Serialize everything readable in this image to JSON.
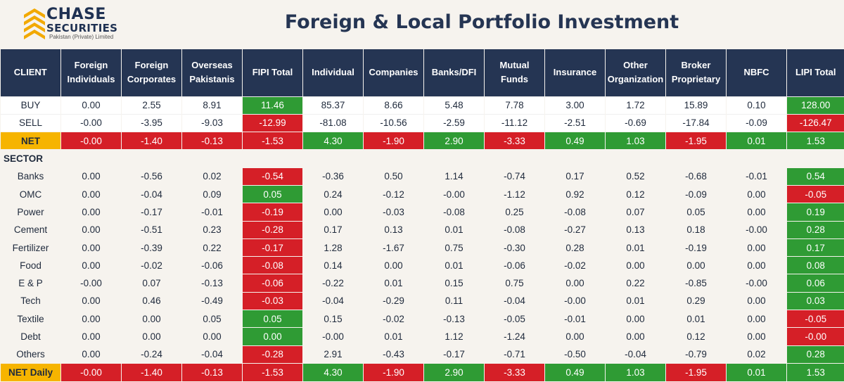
{
  "logo": {
    "line1": "CHASE",
    "line2": "SECURITIES",
    "line3": "Pakistan (Private) Limited"
  },
  "title": "Foreign & Local Portfolio Investment",
  "colors": {
    "header": "#253553",
    "green": "#2f9b34",
    "red": "#d51f27",
    "yellow": "#f6b400",
    "background": "#f6f3ee"
  },
  "columns": [
    "CLIENT",
    "Foreign Individuals",
    "Foreign Corporates",
    "Overseas Pakistanis",
    "FIPI Total",
    "Individual",
    "Companies",
    "Banks/DFI",
    "Mutual Funds",
    "Insurance",
    "Other Organization",
    "Broker Proprietary",
    "NBFC",
    "LIPI Total"
  ],
  "buy": {
    "label": "BUY",
    "values": [
      "0.00",
      "2.55",
      "8.91",
      "11.46",
      "85.37",
      "8.66",
      "5.48",
      "7.78",
      "3.00",
      "1.72",
      "15.89",
      "0.10",
      "128.00"
    ]
  },
  "sell": {
    "label": "SELL",
    "values": [
      "-0.00",
      "-3.95",
      "-9.03",
      "-12.99",
      "-81.08",
      "-10.56",
      "-2.59",
      "-11.12",
      "-2.51",
      "-0.69",
      "-17.84",
      "-0.09",
      "-126.47"
    ]
  },
  "net": {
    "label": "NET",
    "values": [
      "-0.00",
      "-1.40",
      "-0.13",
      "-1.53",
      "4.30",
      "-1.90",
      "2.90",
      "-3.33",
      "0.49",
      "1.03",
      "-1.95",
      "0.01",
      "1.53"
    ]
  },
  "sector_title": "SECTOR",
  "sectors": [
    {
      "name": "Banks",
      "values": [
        "0.00",
        "-0.56",
        "0.02",
        "-0.54",
        "-0.36",
        "0.50",
        "1.14",
        "-0.74",
        "0.17",
        "0.52",
        "-0.68",
        "-0.01",
        "0.54"
      ]
    },
    {
      "name": "OMC",
      "values": [
        "0.00",
        "-0.04",
        "0.09",
        "0.05",
        "0.24",
        "-0.12",
        "-0.00",
        "-1.12",
        "0.92",
        "0.12",
        "-0.09",
        "0.00",
        "-0.05"
      ]
    },
    {
      "name": "Power",
      "values": [
        "0.00",
        "-0.17",
        "-0.01",
        "-0.19",
        "0.00",
        "-0.03",
        "-0.08",
        "0.25",
        "-0.08",
        "0.07",
        "0.05",
        "0.00",
        "0.19"
      ]
    },
    {
      "name": "Cement",
      "values": [
        "0.00",
        "-0.51",
        "0.23",
        "-0.28",
        "0.17",
        "0.13",
        "0.01",
        "-0.08",
        "-0.27",
        "0.13",
        "0.18",
        "-0.00",
        "0.28"
      ]
    },
    {
      "name": "Fertilizer",
      "values": [
        "0.00",
        "-0.39",
        "0.22",
        "-0.17",
        "1.28",
        "-1.67",
        "0.75",
        "-0.30",
        "0.28",
        "0.01",
        "-0.19",
        "0.00",
        "0.17"
      ]
    },
    {
      "name": "Food",
      "values": [
        "0.00",
        "-0.02",
        "-0.06",
        "-0.08",
        "0.14",
        "0.00",
        "0.01",
        "-0.06",
        "-0.02",
        "0.00",
        "0.00",
        "0.00",
        "0.08"
      ]
    },
    {
      "name": "E & P",
      "values": [
        "-0.00",
        "0.07",
        "-0.13",
        "-0.06",
        "-0.22",
        "0.01",
        "0.15",
        "0.75",
        "0.00",
        "0.22",
        "-0.85",
        "-0.00",
        "0.06"
      ]
    },
    {
      "name": "Tech",
      "values": [
        "0.00",
        "0.46",
        "-0.49",
        "-0.03",
        "-0.04",
        "-0.29",
        "0.11",
        "-0.04",
        "-0.00",
        "0.01",
        "0.29",
        "0.00",
        "0.03"
      ]
    },
    {
      "name": "Textile",
      "values": [
        "0.00",
        "0.00",
        "0.05",
        "0.05",
        "0.15",
        "-0.02",
        "-0.13",
        "-0.05",
        "-0.01",
        "0.00",
        "0.01",
        "0.00",
        "-0.05"
      ]
    },
    {
      "name": "Debt",
      "values": [
        "0.00",
        "0.00",
        "0.00",
        "0.00",
        "-0.00",
        "0.01",
        "1.12",
        "-1.24",
        "0.00",
        "0.00",
        "0.12",
        "0.00",
        "-0.00"
      ]
    },
    {
      "name": "Others",
      "values": [
        "0.00",
        "-0.24",
        "-0.04",
        "-0.28",
        "2.91",
        "-0.43",
        "-0.17",
        "-0.71",
        "-0.50",
        "-0.04",
        "-0.79",
        "0.02",
        "0.28"
      ]
    }
  ],
  "net_daily": {
    "label": "NET Daily",
    "values": [
      "-0.00",
      "-1.40",
      "-0.13",
      "-1.53",
      "4.30",
      "-1.90",
      "2.90",
      "-3.33",
      "0.49",
      "1.03",
      "-1.95",
      "0.01",
      "1.53"
    ]
  }
}
